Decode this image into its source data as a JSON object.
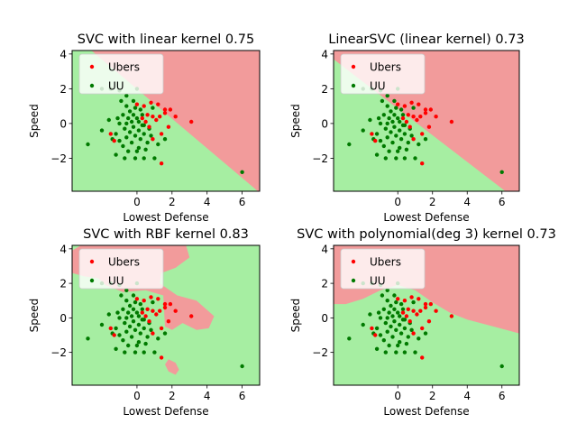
{
  "chart_data": [
    {
      "type": "scatter",
      "title": "SVC with linear kernel 0.75",
      "kernel": "linear",
      "xlabel": "Lowest Defense",
      "ylabel": "Speed",
      "xlim": [
        -3.7,
        7.0
      ],
      "ylim": [
        -3.9,
        4.2
      ],
      "xticks": [
        0,
        2,
        4,
        6
      ],
      "yticks": [
        -2,
        0,
        2,
        4
      ],
      "legend": {
        "placement": "top-left",
        "entries": [
          "Ubers",
          "UU"
        ]
      },
      "region_colors": {
        "Ubers": "#f29b9b",
        "UU": "#a6eea2"
      },
      "boundary": [
        [
          -2.6,
          4.2
        ],
        [
          6.9,
          -3.9
        ]
      ]
    },
    {
      "type": "scatter",
      "title": "LinearSVC (linear kernel) 0.73",
      "kernel": "linear",
      "xlabel": "Lowest Defense",
      "ylabel": "Speed",
      "xlim": [
        -3.7,
        7.0
      ],
      "ylim": [
        -3.9,
        4.2
      ],
      "xticks": [
        0,
        2,
        4,
        6
      ],
      "yticks": [
        -2,
        0,
        2,
        4
      ],
      "legend": {
        "placement": "top-left",
        "entries": [
          "Ubers",
          "UU"
        ]
      },
      "region_colors": {
        "Ubers": "#f29b9b",
        "UU": "#a6eea2"
      },
      "boundary": [
        [
          -3.7,
          3.7
        ],
        [
          6.2,
          -3.9
        ]
      ]
    },
    {
      "type": "scatter",
      "title": "SVC with RBF kernel 0.83",
      "kernel": "rbf",
      "xlabel": "Lowest Defense",
      "ylabel": "Speed",
      "xlim": [
        -3.7,
        7.0
      ],
      "ylim": [
        -3.9,
        4.2
      ],
      "xticks": [
        0,
        2,
        4,
        6
      ],
      "yticks": [
        -2,
        0,
        2,
        4
      ],
      "legend": {
        "placement": "top-left",
        "entries": [
          "Ubers",
          "UU"
        ]
      },
      "region_colors": {
        "Ubers": "#f29b9b",
        "UU": "#a6eea2"
      },
      "regions": [
        [
          [
            -3.7,
            3.9
          ],
          [
            -3.2,
            4.2
          ],
          [
            2.8,
            4.2
          ],
          [
            3.0,
            3.5
          ],
          [
            2.2,
            2.9
          ],
          [
            1.4,
            2.6
          ],
          [
            1.3,
            2.0
          ],
          [
            2.3,
            1.3
          ],
          [
            3.4,
            1.0
          ],
          [
            4.4,
            0.1
          ],
          [
            4.1,
            -0.6
          ],
          [
            3.4,
            -0.7
          ],
          [
            2.6,
            -0.3
          ],
          [
            2.0,
            -0.7
          ],
          [
            1.6,
            -0.5
          ],
          [
            1.5,
            1.3
          ],
          [
            0.5,
            1.6
          ],
          [
            -0.8,
            1.5
          ],
          [
            -1.8,
            1.9
          ],
          [
            -2.2,
            2.3
          ],
          [
            -3.0,
            2.4
          ],
          [
            -3.7,
            2.6
          ]
        ],
        [
          [
            1.8,
            -2.4
          ],
          [
            2.2,
            -2.6
          ],
          [
            2.4,
            -3.0
          ],
          [
            2.2,
            -3.3
          ],
          [
            1.8,
            -3.1
          ],
          [
            1.6,
            -2.7
          ]
        ]
      ]
    },
    {
      "type": "scatter",
      "title": "SVC with polynomial(deg 3) kernel 0.73",
      "kernel": "poly",
      "xlabel": "Lowest Defense",
      "ylabel": "Speed",
      "xlim": [
        -3.7,
        7.0
      ],
      "ylim": [
        -3.9,
        4.2
      ],
      "xticks": [
        0,
        2,
        4,
        6
      ],
      "yticks": [
        -2,
        0,
        2,
        4
      ],
      "legend": {
        "placement": "top-left",
        "entries": [
          "Ubers",
          "UU"
        ]
      },
      "region_colors": {
        "Ubers": "#f29b9b",
        "UU": "#a6eea2"
      },
      "regions": [
        [
          [
            -3.7,
            4.2
          ],
          [
            7.0,
            4.2
          ],
          [
            7.0,
            -0.9
          ],
          [
            5.5,
            -0.5
          ],
          [
            4.0,
            -0.1
          ],
          [
            3.0,
            0.3
          ],
          [
            2.0,
            0.9
          ],
          [
            1.0,
            1.6
          ],
          [
            0.0,
            1.9
          ],
          [
            -1.0,
            1.6
          ],
          [
            -2.0,
            1.1
          ],
          [
            -3.0,
            0.8
          ],
          [
            -3.7,
            0.8
          ]
        ]
      ]
    }
  ],
  "series": {
    "Ubers": {
      "color": "#ff0000",
      "points": [
        [
          0.3,
          0.3
        ],
        [
          0.6,
          0.5
        ],
        [
          0.9,
          0.4
        ],
        [
          0.7,
          -0.2
        ],
        [
          1.1,
          0.2
        ],
        [
          1.2,
          1.1
        ],
        [
          1.6,
          0.8
        ],
        [
          1.8,
          -0.2
        ],
        [
          1.4,
          -0.6
        ],
        [
          1.6,
          0.6
        ],
        [
          1.9,
          0.8
        ],
        [
          0.4,
          1.0
        ],
        [
          0.8,
          1.2
        ],
        [
          3.1,
          0.1
        ],
        [
          1.4,
          -2.3
        ],
        [
          -1.3,
          -1.0
        ],
        [
          -1.5,
          -0.6
        ],
        [
          0.9,
          -0.9
        ],
        [
          0.5,
          0.1
        ],
        [
          1.3,
          0.4
        ],
        [
          2.2,
          0.4
        ],
        [
          0.0,
          1.1
        ]
      ]
    },
    "UU": {
      "color": "#007a00",
      "points": [
        [
          -2.0,
          2.0
        ],
        [
          -1.5,
          2.0
        ],
        [
          -1.0,
          1.9
        ],
        [
          -0.6,
          1.6
        ],
        [
          -0.9,
          1.3
        ],
        [
          0.0,
          2.0
        ],
        [
          -0.6,
          1.0
        ],
        [
          -0.1,
          0.9
        ],
        [
          0.2,
          0.8
        ],
        [
          -0.4,
          0.7
        ],
        [
          -0.8,
          0.5
        ],
        [
          -0.2,
          0.5
        ],
        [
          0.3,
          0.5
        ],
        [
          -0.5,
          0.3
        ],
        [
          0.0,
          0.3
        ],
        [
          -1.1,
          0.3
        ],
        [
          -0.3,
          0.1
        ],
        [
          0.1,
          0.1
        ],
        [
          -0.6,
          0.0
        ],
        [
          -1.0,
          0.0
        ],
        [
          0.4,
          -0.1
        ],
        [
          -0.2,
          -0.2
        ],
        [
          0.7,
          -0.3
        ],
        [
          -0.7,
          -0.3
        ],
        [
          0.1,
          -0.4
        ],
        [
          -0.4,
          -0.5
        ],
        [
          -1.2,
          -0.6
        ],
        [
          0.4,
          -0.6
        ],
        [
          -0.1,
          -0.7
        ],
        [
          0.8,
          -0.7
        ],
        [
          -0.6,
          -0.8
        ],
        [
          0.2,
          -0.9
        ],
        [
          -1.0,
          -1.0
        ],
        [
          -0.3,
          -1.1
        ],
        [
          0.6,
          -1.1
        ],
        [
          1.2,
          -1.2
        ],
        [
          -0.8,
          -1.3
        ],
        [
          0.1,
          -1.4
        ],
        [
          0.5,
          -1.5
        ],
        [
          -0.5,
          -1.6
        ],
        [
          -1.2,
          -1.8
        ],
        [
          -0.1,
          -2.0
        ],
        [
          0.4,
          -2.0
        ],
        [
          -0.7,
          -2.0
        ],
        [
          1.0,
          -2.0
        ],
        [
          0.0,
          -1.6
        ],
        [
          -1.6,
          0.2
        ],
        [
          -2.0,
          -0.4
        ],
        [
          -2.8,
          -1.2
        ],
        [
          6.0,
          -2.8
        ],
        [
          0.9,
          0.9
        ],
        [
          -1.4,
          -0.9
        ],
        [
          0.3,
          -0.1
        ],
        [
          -0.2,
          1.3
        ],
        [
          1.6,
          -0.9
        ]
      ]
    }
  }
}
